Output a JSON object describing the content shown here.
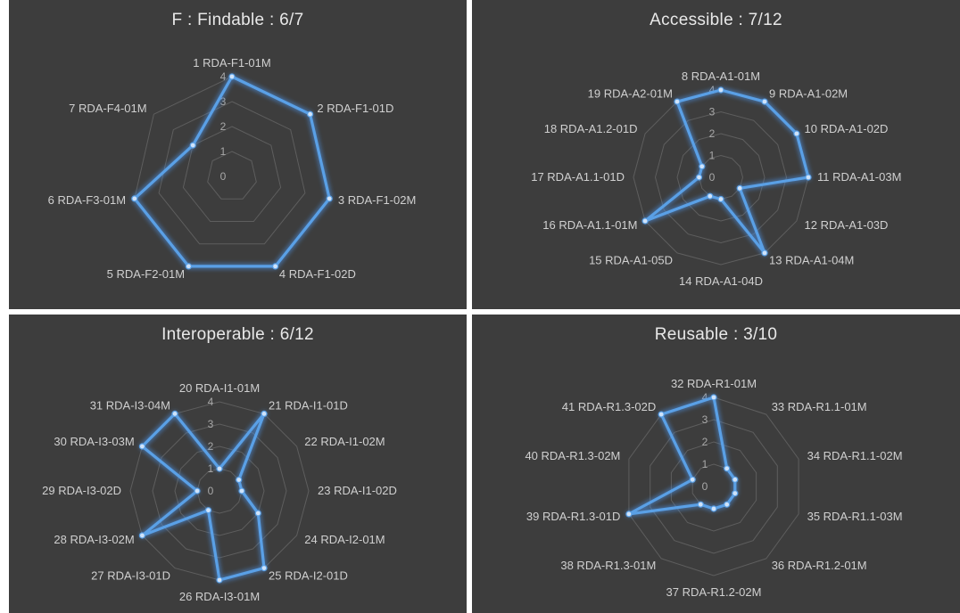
{
  "style": {
    "panel_background": "#3d3d3d",
    "grid_color": "#5e5e5e",
    "series_color": "#5aa0e6",
    "glow_color": "#4a90e2",
    "label_color": "#d0d0d0",
    "tick_color": "#a8a8a8"
  },
  "chart_data": [
    {
      "type": "radar",
      "title": "F : Findable : 6/7",
      "ylim": [
        0,
        4
      ],
      "ticks": [
        "0",
        "1",
        "2",
        "3",
        "4"
      ],
      "grid": true,
      "categories": [
        "1 RDA-F1-01M",
        "2 RDA-F1-01D",
        "3 RDA-F1-02M",
        "4 RDA-F1-02D",
        "5 RDA-F2-01M",
        "6 RDA-F3-01M",
        "7 RDA-F4-01M"
      ],
      "values": [
        4,
        4,
        4,
        4,
        4,
        4,
        2
      ]
    },
    {
      "type": "radar",
      "title": "Accessible : 7/12",
      "ylim": [
        0,
        4
      ],
      "ticks": [
        "0",
        "1",
        "2",
        "3",
        "4"
      ],
      "grid": true,
      "categories": [
        "8 RDA-A1-01M",
        "9 RDA-A1-02M",
        "10 RDA-A1-02D",
        "11 RDA-A1-03M",
        "12 RDA-A1-03D",
        "13 RDA-A1-04M",
        "14 RDA-A1-04D",
        "15 RDA-A1-05D",
        "16 RDA-A1.1-01M",
        "17 RDA-A1.1-01D",
        "18 RDA-A1.2-01D",
        "19 RDA-A2-01M"
      ],
      "values": [
        4,
        4,
        4,
        4,
        1,
        4,
        1,
        1,
        4,
        1,
        1,
        4
      ]
    },
    {
      "type": "radar",
      "title": "Interoperable : 6/12",
      "ylim": [
        0,
        4
      ],
      "ticks": [
        "0",
        "1",
        "2",
        "3",
        "4"
      ],
      "grid": true,
      "categories": [
        "20 RDA-I1-01M",
        "21 RDA-I1-01D",
        "22 RDA-I1-02M",
        "23 RDA-I1-02D",
        "24 RDA-I2-01M",
        "25 RDA-I2-01D",
        "26 RDA-I3-01M",
        "27 RDA-I3-01D",
        "28 RDA-I3-02M",
        "29 RDA-I3-02D",
        "30 RDA-I3-03M",
        "31 RDA-I3-04M"
      ],
      "values": [
        1,
        4,
        1,
        1,
        2,
        4,
        4,
        1,
        4,
        1,
        4,
        4
      ]
    },
    {
      "type": "radar",
      "title": "Reusable : 3/10",
      "ylim": [
        0,
        4
      ],
      "ticks": [
        "0",
        "1",
        "2",
        "3",
        "4"
      ],
      "grid": true,
      "categories": [
        "32 RDA-R1-01M",
        "33 RDA-R1.1-01M",
        "34 RDA-R1.1-02M",
        "35 RDA-R1.1-03M",
        "36 RDA-R1.2-01M",
        "37 RDA-R1.2-02M",
        "38 RDA-R1.3-01M",
        "39 RDA-R1.3-01D",
        "40 RDA-R1.3-02M",
        "41 RDA-R1.3-02D"
      ],
      "values": [
        4,
        1,
        1,
        1,
        1,
        1,
        1,
        4,
        1,
        4
      ]
    }
  ]
}
